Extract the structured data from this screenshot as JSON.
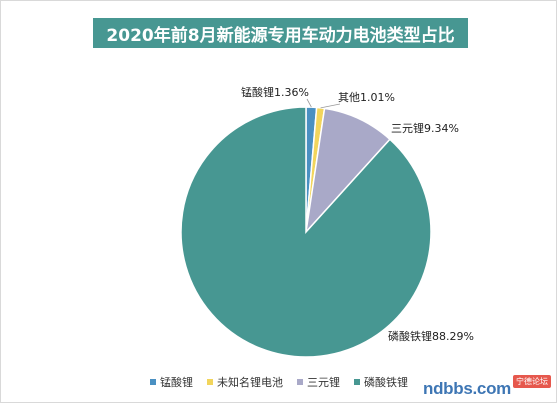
{
  "chart_data": {
    "type": "pie",
    "title": "2020年前8月新能源专用车动力电池类型占比",
    "categories": [
      "锰酸锂",
      "未知名锂电池",
      "三元锂",
      "磷酸铁锂"
    ],
    "values": [
      1.36,
      1.01,
      9.34,
      88.29
    ],
    "data_labels": [
      "锰酸锂1.36%",
      "其他1.01%",
      "三元锂9.34%",
      "磷酸铁锂88.29%"
    ],
    "colors": [
      "#4a90c2",
      "#f2d55c",
      "#a9a9c8",
      "#479792"
    ],
    "legend_position": "bottom",
    "start_angle": "12 o'clock, clockwise"
  },
  "title_bar_color": "#479792",
  "watermark": {
    "text": "ndbbs.com",
    "badge": "宁德论坛"
  }
}
